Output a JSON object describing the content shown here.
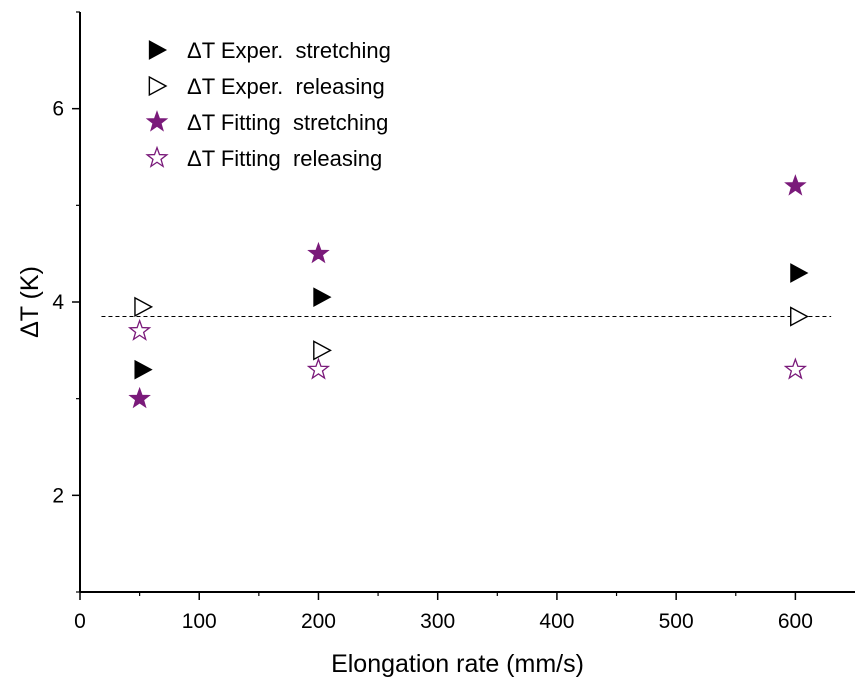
{
  "chart_data": {
    "type": "scatter",
    "title": "",
    "xlabel": "Elongation rate (mm/s)",
    "ylabel": "ΔT (K)",
    "xlim": [
      0,
      650
    ],
    "ylim": [
      1,
      7
    ],
    "xticks": [
      0,
      100,
      200,
      300,
      400,
      500,
      600
    ],
    "yticks": [
      2,
      4,
      6
    ],
    "grid": false,
    "legend_position": "top-left",
    "reference_line": {
      "y": 3.85,
      "x_range": [
        18,
        630
      ],
      "style": "dashed"
    },
    "series": [
      {
        "name": "ΔT Exper.  stretching",
        "marker": "triangle-right-filled",
        "color": "#000000",
        "x": [
          50,
          200,
          600
        ],
        "y": [
          3.3,
          4.05,
          4.3
        ]
      },
      {
        "name": "ΔT Exper.  releasing",
        "marker": "triangle-right-open",
        "color": "#000000",
        "x": [
          50,
          200,
          600
        ],
        "y": [
          3.95,
          3.5,
          3.85
        ]
      },
      {
        "name": "ΔT Fitting  stretching",
        "marker": "star-filled",
        "color": "#7a1a7a",
        "x": [
          50,
          200,
          600
        ],
        "y": [
          3.0,
          4.5,
          5.2
        ]
      },
      {
        "name": "ΔT Fitting  releasing",
        "marker": "star-open",
        "color": "#7a1a7a",
        "x": [
          50,
          200,
          600
        ],
        "y": [
          3.7,
          3.3,
          3.3
        ]
      }
    ]
  }
}
